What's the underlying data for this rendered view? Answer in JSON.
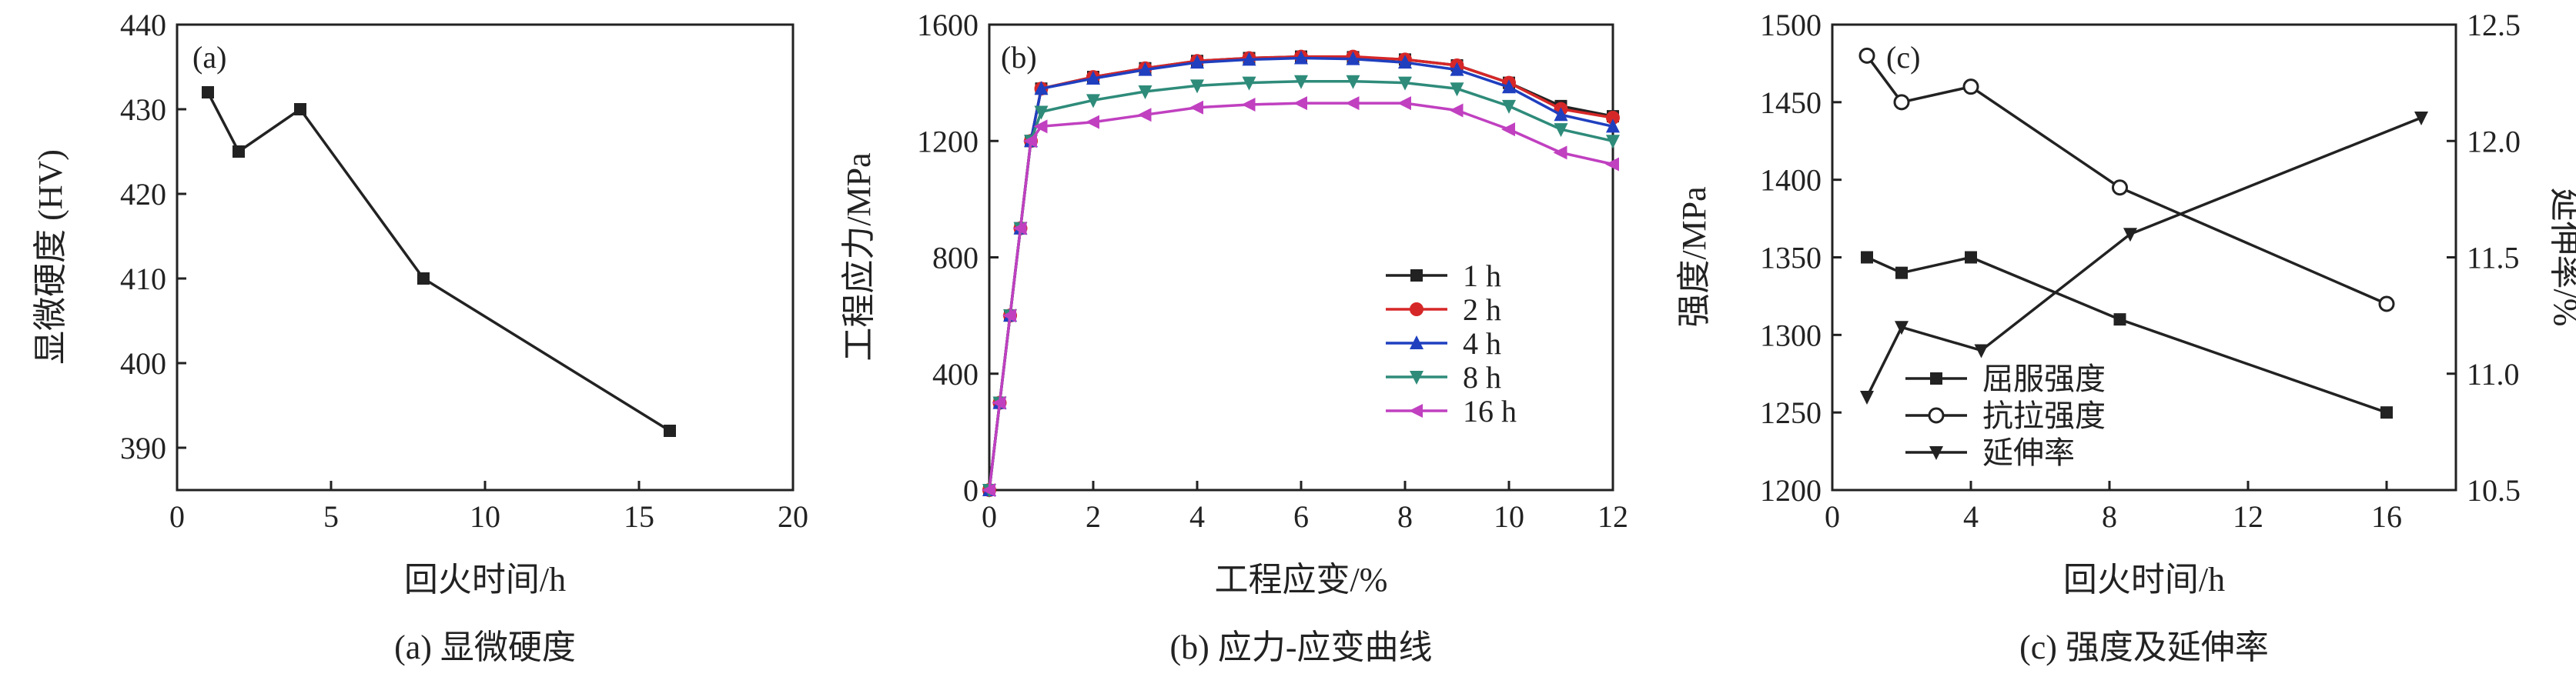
{
  "chart_data": [
    {
      "type": "line",
      "panel_label": "(a)",
      "caption": "(a) 显微硬度",
      "xlabel": "回火时间/h",
      "ylabel": "显微硬度 (HV)",
      "xlim": [
        0,
        20
      ],
      "ylim": [
        385,
        440
      ],
      "xticks": [
        0,
        5,
        10,
        15,
        20
      ],
      "yticks": [
        390,
        400,
        410,
        420,
        430,
        440
      ],
      "grid": false,
      "series": [
        {
          "x": [
            1,
            2,
            4,
            8,
            16
          ],
          "values": [
            432,
            425,
            430,
            410,
            392
          ],
          "marker": "square",
          "color": "#222222"
        }
      ]
    },
    {
      "type": "line",
      "panel_label": "(b)",
      "caption": "(b) 应力-应变曲线",
      "xlabel": "工程应变/%",
      "ylabel": "工程应力/MPa",
      "xlim": [
        0,
        12
      ],
      "ylim": [
        0,
        1600
      ],
      "xticks": [
        0,
        2,
        4,
        6,
        8,
        10,
        12
      ],
      "yticks": [
        0,
        400,
        800,
        1200,
        1600
      ],
      "grid": false,
      "legend_position": "center-right",
      "series": [
        {
          "name": "1 h",
          "color": "#222222",
          "marker": "square",
          "x": [
            0,
            0.2,
            0.4,
            0.6,
            0.8,
            1,
            2,
            3,
            4,
            5,
            6,
            7,
            8,
            9,
            10,
            11,
            12
          ],
          "values": [
            0,
            300,
            600,
            900,
            1200,
            1380,
            1420,
            1450,
            1475,
            1485,
            1490,
            1488,
            1480,
            1460,
            1400,
            1320,
            1285
          ]
        },
        {
          "name": "2 h",
          "color": "#d62728",
          "marker": "circle",
          "x": [
            0,
            0.2,
            0.4,
            0.6,
            0.8,
            1,
            2,
            3,
            4,
            5,
            6,
            7,
            8,
            9,
            10,
            11,
            12
          ],
          "values": [
            0,
            300,
            600,
            900,
            1200,
            1380,
            1420,
            1450,
            1475,
            1485,
            1490,
            1490,
            1480,
            1460,
            1400,
            1310,
            1280
          ]
        },
        {
          "name": "4 h",
          "color": "#1f3fbf",
          "marker": "triangle-up",
          "x": [
            0,
            0.2,
            0.4,
            0.6,
            0.8,
            1,
            2,
            3,
            4,
            5,
            6,
            7,
            8,
            9,
            10,
            11,
            12
          ],
          "values": [
            0,
            300,
            600,
            900,
            1200,
            1380,
            1415,
            1445,
            1470,
            1480,
            1485,
            1482,
            1470,
            1445,
            1385,
            1290,
            1250
          ]
        },
        {
          "name": "8 h",
          "color": "#2e8b7a",
          "marker": "triangle-down",
          "x": [
            0,
            0.2,
            0.4,
            0.6,
            0.8,
            1,
            2,
            3,
            4,
            5,
            6,
            7,
            8,
            9,
            10,
            11,
            12
          ],
          "values": [
            0,
            300,
            600,
            900,
            1200,
            1300,
            1340,
            1370,
            1390,
            1400,
            1405,
            1405,
            1400,
            1380,
            1320,
            1240,
            1200
          ]
        },
        {
          "name": "16 h",
          "color": "#c040c0",
          "marker": "triangle-left",
          "x": [
            0,
            0.2,
            0.4,
            0.6,
            0.8,
            1,
            2,
            3,
            4,
            5,
            6,
            7,
            8,
            9,
            10,
            11,
            12
          ],
          "values": [
            0,
            300,
            600,
            900,
            1200,
            1250,
            1265,
            1290,
            1315,
            1325,
            1330,
            1330,
            1330,
            1305,
            1240,
            1160,
            1120
          ]
        }
      ]
    },
    {
      "type": "line",
      "panel_label": "(c)",
      "caption": "(c) 强度及延伸率",
      "xlabel": "回火时间/h",
      "ylabel": "强度/MPa",
      "ylabel_right": "延伸率/%",
      "xlim": [
        0,
        18
      ],
      "ylim": [
        1200,
        1500
      ],
      "ylim_right": [
        10.5,
        12.5
      ],
      "xticks": [
        0,
        4,
        8,
        12,
        16
      ],
      "yticks": [
        1200,
        1250,
        1300,
        1350,
        1400,
        1450,
        1500
      ],
      "yticks_right": [
        "10.5",
        "11.0",
        "11.5",
        "12.0",
        "12.5"
      ],
      "grid": false,
      "legend_position": "center-right",
      "series": [
        {
          "name": "屈服强度",
          "axis": "left",
          "marker": "square",
          "color": "#222222",
          "x": [
            1,
            2,
            4,
            8.3,
            16
          ],
          "values": [
            1350,
            1340,
            1350,
            1310,
            1250
          ]
        },
        {
          "name": "抗拉强度",
          "axis": "left",
          "marker": "circle-open",
          "color": "#222222",
          "x": [
            1,
            2,
            4,
            8.3,
            16
          ],
          "values": [
            1480,
            1450,
            1460,
            1395,
            1320
          ]
        },
        {
          "name": "延伸率",
          "axis": "right",
          "marker": "triangle-down",
          "color": "#222222",
          "x": [
            1,
            2,
            4.3,
            8.6,
            17
          ],
          "values": [
            10.9,
            11.2,
            11.1,
            11.6,
            12.1
          ]
        }
      ]
    }
  ]
}
